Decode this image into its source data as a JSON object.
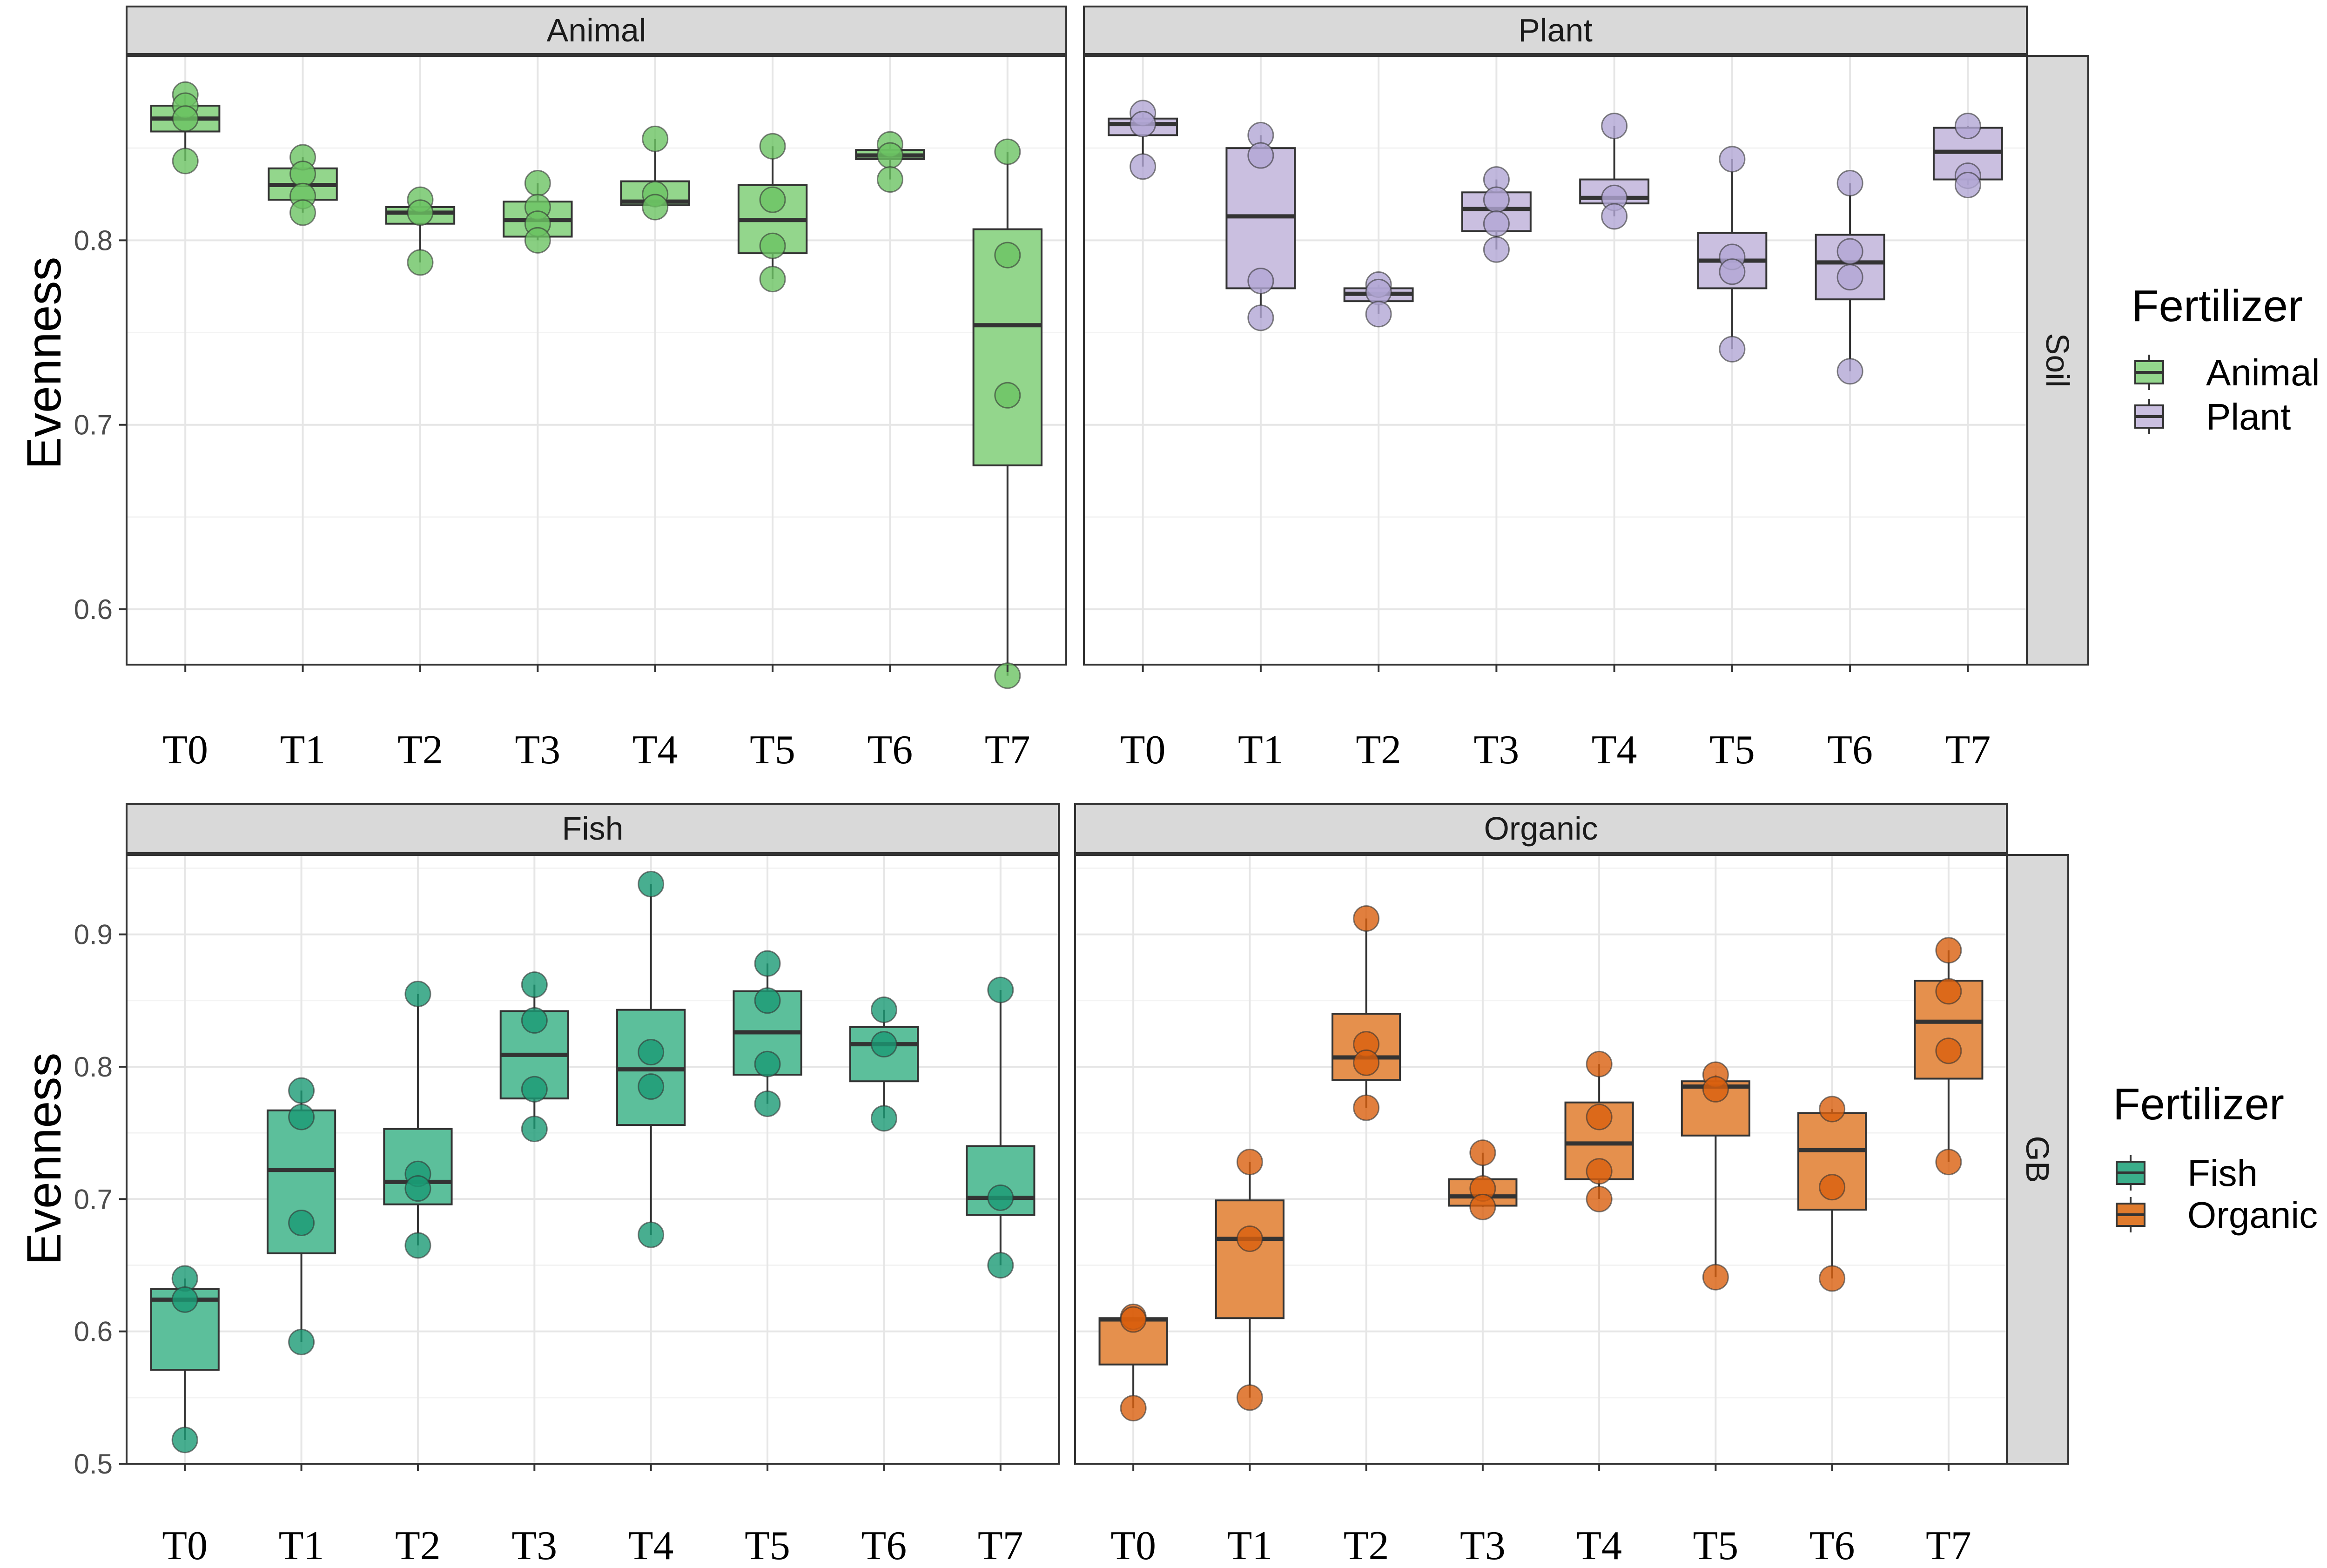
{
  "chart_data": {
    "type": "box",
    "ylabel": "Evenness",
    "rows": [
      {
        "row_label": "Soil",
        "ylim": [
          0.57,
          0.9
        ],
        "yticks": [
          0.6,
          0.7,
          0.8
        ],
        "legend": {
          "title": "Fertilizer",
          "items": [
            {
              "label": "Animal",
              "color": "#93d68c"
            },
            {
              "label": "Plant",
              "color": "#cabfe0"
            }
          ]
        },
        "panels": [
          {
            "title": "Animal",
            "fill": "#93d68c",
            "point": "#6cc363",
            "categories": [
              "T0",
              "T1",
              "T2",
              "T3",
              "T4",
              "T5",
              "T6",
              "T7"
            ],
            "boxes": [
              {
                "min": 0.843,
                "q1": 0.859,
                "median": 0.866,
                "q3": 0.873,
                "max": 0.879,
                "points": [
                  0.879,
                  0.873,
                  0.866,
                  0.843
                ]
              },
              {
                "min": 0.815,
                "q1": 0.822,
                "median": 0.83,
                "q3": 0.839,
                "max": 0.845,
                "points": [
                  0.845,
                  0.836,
                  0.824,
                  0.815
                ]
              },
              {
                "min": 0.788,
                "q1": 0.809,
                "median": 0.815,
                "q3": 0.818,
                "max": 0.822,
                "points": [
                  0.822,
                  0.815,
                  0.788
                ]
              },
              {
                "min": 0.8,
                "q1": 0.802,
                "median": 0.811,
                "q3": 0.821,
                "max": 0.831,
                "points": [
                  0.831,
                  0.818,
                  0.809,
                  0.8
                ]
              },
              {
                "min": 0.818,
                "q1": 0.819,
                "median": 0.821,
                "q3": 0.832,
                "max": 0.855,
                "points": [
                  0.855,
                  0.825,
                  0.818
                ]
              },
              {
                "min": 0.779,
                "q1": 0.793,
                "median": 0.811,
                "q3": 0.83,
                "max": 0.851,
                "points": [
                  0.851,
                  0.822,
                  0.797,
                  0.779
                ]
              },
              {
                "min": 0.833,
                "q1": 0.844,
                "median": 0.846,
                "q3": 0.849,
                "max": 0.852,
                "points": [
                  0.852,
                  0.846,
                  0.833
                ]
              },
              {
                "min": 0.564,
                "q1": 0.678,
                "median": 0.754,
                "q3": 0.806,
                "max": 0.848,
                "points": [
                  0.848,
                  0.792,
                  0.716,
                  0.564
                ]
              }
            ]
          },
          {
            "title": "Plant",
            "fill": "#cabfe0",
            "point": "#b2a6d4",
            "categories": [
              "T0",
              "T1",
              "T2",
              "T3",
              "T4",
              "T5",
              "T6",
              "T7"
            ],
            "boxes": [
              {
                "min": 0.84,
                "q1": 0.857,
                "median": 0.863,
                "q3": 0.866,
                "max": 0.869,
                "points": [
                  0.869,
                  0.863,
                  0.84
                ]
              },
              {
                "min": 0.758,
                "q1": 0.774,
                "median": 0.813,
                "q3": 0.85,
                "max": 0.857,
                "points": [
                  0.857,
                  0.846,
                  0.778,
                  0.758
                ]
              },
              {
                "min": 0.76,
                "q1": 0.767,
                "median": 0.771,
                "q3": 0.774,
                "max": 0.776,
                "points": [
                  0.776,
                  0.772,
                  0.76
                ]
              },
              {
                "min": 0.795,
                "q1": 0.805,
                "median": 0.817,
                "q3": 0.826,
                "max": 0.833,
                "points": [
                  0.833,
                  0.822,
                  0.809,
                  0.795
                ]
              },
              {
                "min": 0.813,
                "q1": 0.82,
                "median": 0.823,
                "q3": 0.833,
                "max": 0.862,
                "points": [
                  0.862,
                  0.823,
                  0.813
                ]
              },
              {
                "min": 0.741,
                "q1": 0.774,
                "median": 0.789,
                "q3": 0.804,
                "max": 0.844,
                "points": [
                  0.844,
                  0.791,
                  0.783,
                  0.741
                ]
              },
              {
                "min": 0.729,
                "q1": 0.768,
                "median": 0.788,
                "q3": 0.803,
                "max": 0.831,
                "points": [
                  0.831,
                  0.794,
                  0.78,
                  0.729
                ]
              },
              {
                "min": 0.83,
                "q1": 0.833,
                "median": 0.848,
                "q3": 0.861,
                "max": 0.862,
                "points": [
                  0.862,
                  0.835,
                  0.83
                ]
              }
            ]
          }
        ]
      },
      {
        "row_label": "GB",
        "ylim": [
          0.5,
          0.96
        ],
        "yticks": [
          0.5,
          0.6,
          0.7,
          0.8,
          0.9
        ],
        "legend": {
          "title": "Fertilizer",
          "items": [
            {
              "label": "Fish",
              "color": "#3aae8a"
            },
            {
              "label": "Organic",
              "color": "#e07b2d"
            }
          ]
        },
        "panels": [
          {
            "title": "Fish",
            "fill": "#5cbf9b",
            "point": "#1a9a74",
            "categories": [
              "T0",
              "T1",
              "T2",
              "T3",
              "T4",
              "T5",
              "T6",
              "T7"
            ],
            "boxes": [
              {
                "min": 0.518,
                "q1": 0.571,
                "median": 0.624,
                "q3": 0.632,
                "max": 0.64,
                "points": [
                  0.64,
                  0.624,
                  0.518
                ]
              },
              {
                "min": 0.592,
                "q1": 0.659,
                "median": 0.722,
                "q3": 0.767,
                "max": 0.782,
                "points": [
                  0.782,
                  0.762,
                  0.682,
                  0.592
                ]
              },
              {
                "min": 0.665,
                "q1": 0.696,
                "median": 0.713,
                "q3": 0.753,
                "max": 0.855,
                "points": [
                  0.855,
                  0.719,
                  0.708,
                  0.665
                ]
              },
              {
                "min": 0.753,
                "q1": 0.776,
                "median": 0.809,
                "q3": 0.842,
                "max": 0.862,
                "points": [
                  0.862,
                  0.835,
                  0.783,
                  0.753
                ]
              },
              {
                "min": 0.673,
                "q1": 0.756,
                "median": 0.798,
                "q3": 0.843,
                "max": 0.938,
                "points": [
                  0.938,
                  0.811,
                  0.785,
                  0.673
                ]
              },
              {
                "min": 0.772,
                "q1": 0.794,
                "median": 0.826,
                "q3": 0.857,
                "max": 0.878,
                "points": [
                  0.878,
                  0.85,
                  0.802,
                  0.772
                ]
              },
              {
                "min": 0.761,
                "q1": 0.789,
                "median": 0.817,
                "q3": 0.83,
                "max": 0.843,
                "points": [
                  0.843,
                  0.817,
                  0.761
                ]
              },
              {
                "min": 0.65,
                "q1": 0.688,
                "median": 0.701,
                "q3": 0.74,
                "max": 0.858,
                "points": [
                  0.858,
                  0.701,
                  0.65
                ]
              }
            ]
          },
          {
            "title": "Organic",
            "fill": "#e5904d",
            "point": "#d95f0e",
            "categories": [
              "T0",
              "T1",
              "T2",
              "T3",
              "T4",
              "T5",
              "T6",
              "T7"
            ],
            "boxes": [
              {
                "min": 0.542,
                "q1": 0.575,
                "median": 0.609,
                "q3": 0.61,
                "max": 0.611,
                "points": [
                  0.611,
                  0.609,
                  0.542
                ]
              },
              {
                "min": 0.55,
                "q1": 0.61,
                "median": 0.67,
                "q3": 0.699,
                "max": 0.728,
                "points": [
                  0.728,
                  0.67,
                  0.55
                ]
              },
              {
                "min": 0.769,
                "q1": 0.79,
                "median": 0.807,
                "q3": 0.84,
                "max": 0.912,
                "points": [
                  0.912,
                  0.817,
                  0.803,
                  0.769
                ]
              },
              {
                "min": 0.694,
                "q1": 0.695,
                "median": 0.702,
                "q3": 0.715,
                "max": 0.735,
                "points": [
                  0.735,
                  0.708,
                  0.694
                ]
              },
              {
                "min": 0.7,
                "q1": 0.715,
                "median": 0.742,
                "q3": 0.773,
                "max": 0.802,
                "points": [
                  0.802,
                  0.762,
                  0.721,
                  0.7
                ]
              },
              {
                "min": 0.641,
                "q1": 0.748,
                "median": 0.785,
                "q3": 0.789,
                "max": 0.794,
                "points": [
                  0.794,
                  0.783,
                  0.641
                ]
              },
              {
                "min": 0.64,
                "q1": 0.692,
                "median": 0.737,
                "q3": 0.765,
                "max": 0.768,
                "points": [
                  0.768,
                  0.709,
                  0.64
                ]
              },
              {
                "min": 0.728,
                "q1": 0.791,
                "median": 0.834,
                "q3": 0.865,
                "max": 0.888,
                "points": [
                  0.888,
                  0.857,
                  0.812,
                  0.728
                ]
              }
            ]
          }
        ]
      }
    ]
  }
}
